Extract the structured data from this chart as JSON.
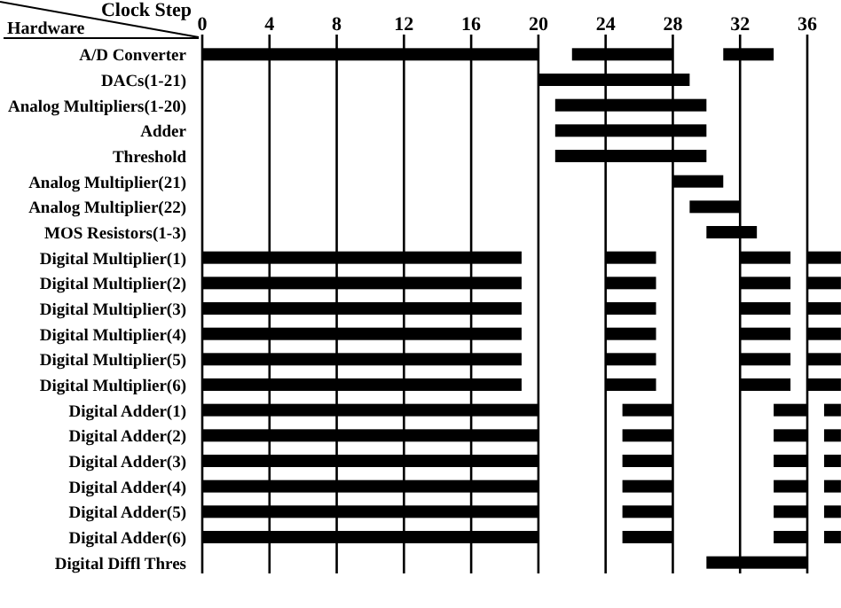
{
  "chart_data": {
    "type": "bar",
    "orientation": "horizontal",
    "xlabel": "Clock Step",
    "ylabel": "Hardware",
    "categories": [
      "A/D Converter",
      "DACs(1-21)",
      "Analog Multipliers(1-20)",
      "Adder",
      "Threshold",
      "Analog Multiplier(21)",
      "Analog Multiplier(22)",
      "MOS Resistors(1-3)",
      "Digital Multiplier(1)",
      "Digital Multiplier(2)",
      "Digital Multiplier(3)",
      "Digital Multiplier(4)",
      "Digital Multiplier(5)",
      "Digital Multiplier(6)",
      "Digital Adder(1)",
      "Digital Adder(2)",
      "Digital Adder(3)",
      "Digital Adder(4)",
      "Digital Adder(5)",
      "Digital Adder(6)",
      "Digital Diffl Thres"
    ],
    "xlim": [
      0,
      38
    ],
    "xticks": [
      0,
      4,
      8,
      12,
      16,
      20,
      24,
      28,
      32,
      36
    ],
    "grid": "x",
    "series": [
      {
        "color": "#000000",
        "base": [
          0,
          20,
          21,
          21,
          21,
          28,
          29,
          30,
          0,
          0,
          0,
          0,
          0,
          0,
          0,
          0,
          0,
          0,
          0,
          0,
          30
        ],
        "values": [
          20,
          9,
          9,
          9,
          9,
          3,
          3,
          3,
          19,
          19,
          19,
          19,
          19,
          19,
          20,
          20,
          20,
          20,
          20,
          20,
          6
        ]
      },
      {
        "color": "#000000",
        "base": [
          22,
          null,
          null,
          null,
          null,
          null,
          null,
          null,
          24,
          24,
          24,
          24,
          24,
          24,
          25,
          25,
          25,
          25,
          25,
          25,
          null
        ],
        "values": [
          6,
          null,
          null,
          null,
          null,
          null,
          null,
          null,
          3,
          3,
          3,
          3,
          3,
          3,
          3,
          3,
          3,
          3,
          3,
          3,
          null
        ]
      },
      {
        "color": "#000000",
        "base": [
          31,
          null,
          null,
          null,
          null,
          null,
          null,
          null,
          32,
          32,
          32,
          32,
          32,
          32,
          34,
          34,
          34,
          34,
          34,
          34,
          null
        ],
        "values": [
          3,
          null,
          null,
          null,
          null,
          null,
          null,
          null,
          3,
          3,
          3,
          3,
          3,
          3,
          2,
          2,
          2,
          2,
          2,
          2,
          null
        ]
      },
      {
        "color": "#000000",
        "base": [
          null,
          null,
          null,
          null,
          null,
          null,
          null,
          null,
          36,
          36,
          36,
          36,
          36,
          36,
          37,
          37,
          37,
          37,
          37,
          37,
          null
        ],
        "values": [
          null,
          null,
          null,
          null,
          null,
          null,
          null,
          null,
          2,
          2,
          2,
          2,
          2,
          2,
          1,
          1,
          1,
          1,
          1,
          1,
          null
        ]
      }
    ]
  }
}
